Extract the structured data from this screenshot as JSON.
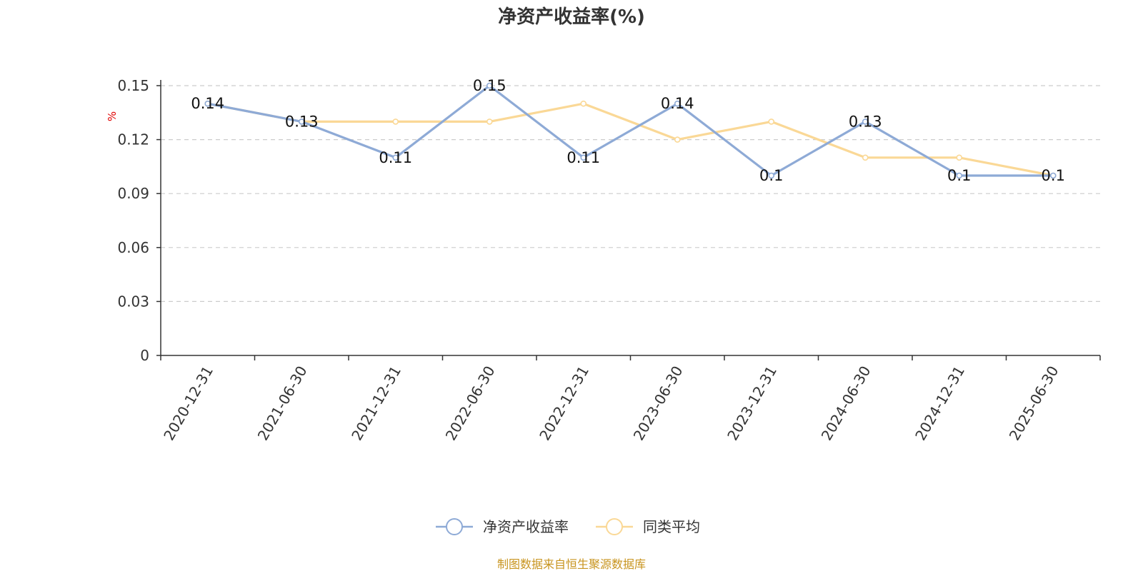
{
  "chart_data": {
    "type": "line",
    "title": "净资产收益率(%)",
    "ylabel": "%",
    "categories": [
      "2020-12-31",
      "2021-06-30",
      "2021-12-31",
      "2022-06-30",
      "2022-12-31",
      "2023-06-30",
      "2023-12-31",
      "2024-06-30",
      "2024-12-31",
      "2025-06-30"
    ],
    "ylim": [
      0,
      0.15
    ],
    "yticks": [
      "0",
      "0.03",
      "0.06",
      "0.09",
      "0.12",
      "0.15"
    ],
    "grid": true,
    "legend_position": "bottom-center",
    "series": [
      {
        "name": "净资产收益率",
        "color": "#8eaad6",
        "values": [
          0.14,
          0.13,
          0.11,
          0.15,
          0.11,
          0.14,
          0.1,
          0.13,
          0.1,
          0.1
        ],
        "labels": [
          "0.14",
          "0.13",
          "0.11",
          "0.15",
          "0.11",
          "0.14",
          "0.1",
          "0.13",
          "0.1",
          "0.1"
        ]
      },
      {
        "name": "同类平均",
        "color": "#fad896",
        "values": [
          0.14,
          0.13,
          0.13,
          0.13,
          0.14,
          0.12,
          0.13,
          0.11,
          0.11,
          0.1
        ]
      }
    ]
  },
  "source": "制图数据来自恒生聚源数据库"
}
